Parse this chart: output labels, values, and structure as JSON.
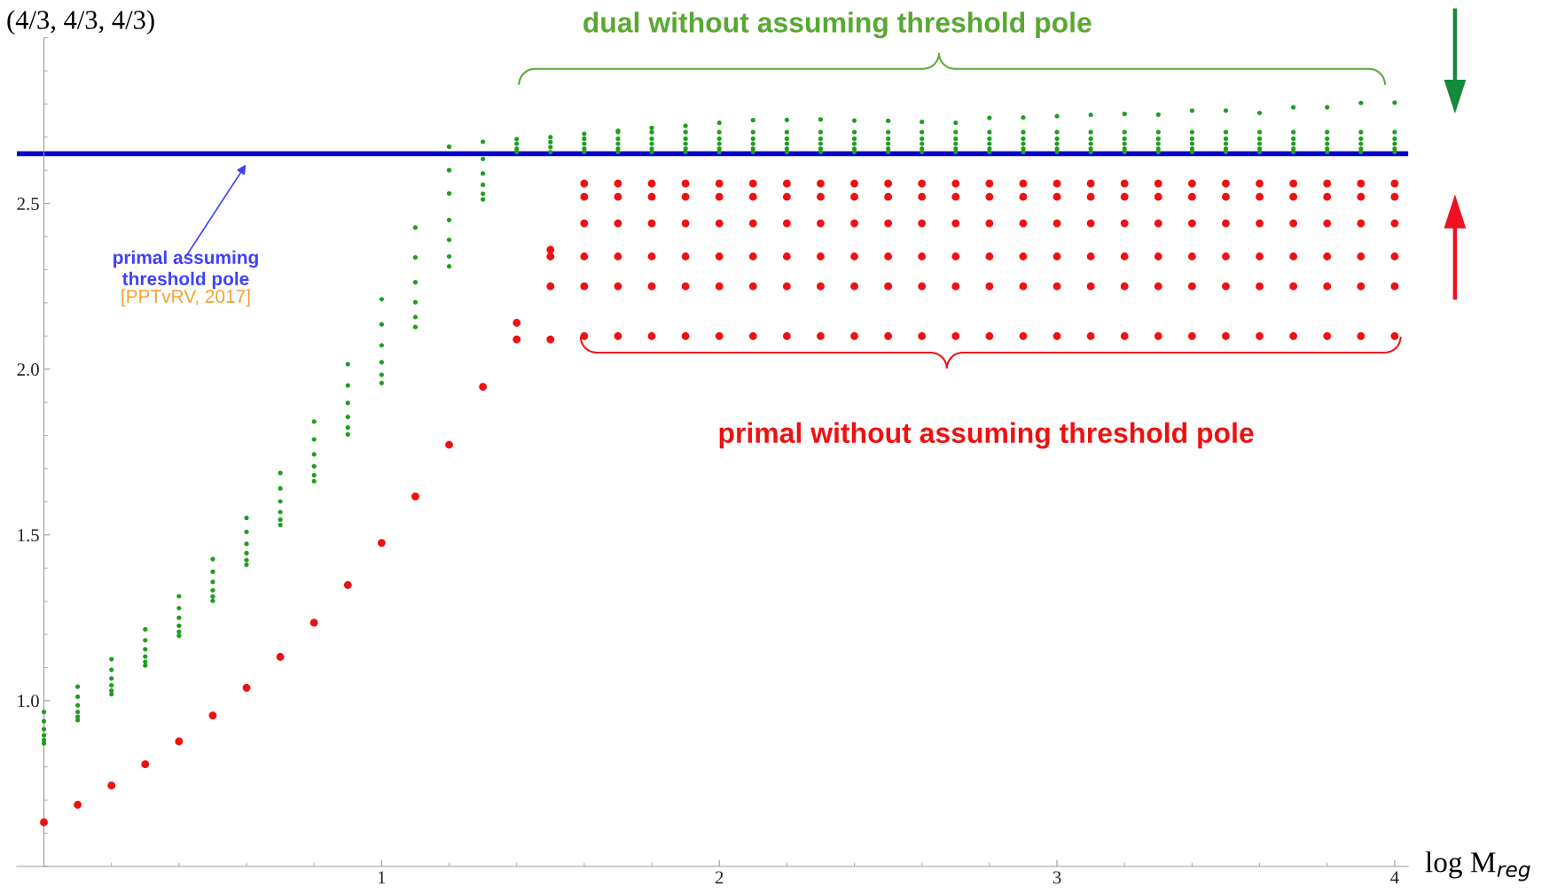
{
  "chart_data": {
    "type": "scatter",
    "xlabel": "log M$_{reg}$",
    "ylabel": "(4/3, 4/3, 4/3)",
    "xlim": [
      -0.08,
      4.04
    ],
    "ylim": [
      0.5,
      3.0
    ],
    "xticks": [
      1,
      2,
      3,
      4
    ],
    "yticks": [
      {
        "value": 1,
        "label": "1.0"
      },
      1.5,
      {
        "value": 2,
        "label": "2.0"
      },
      2.5
    ],
    "marker": "circle",
    "ref_lines": [
      {
        "axis": "y",
        "value": 2.65,
        "color": "#0000cc"
      }
    ],
    "annotations": [
      "primal assuming threshold pole",
      "[PPTvRV, 2017]"
    ],
    "series": [
      {
        "name": "dual without assuming threshold pole",
        "color": "#1e9e1e",
        "x": [
          0,
          0,
          0,
          0,
          0,
          0,
          0.1,
          0.1,
          0.1,
          0.1,
          0.1,
          0.1,
          0.2,
          0.2,
          0.2,
          0.2,
          0.2,
          0.2,
          0.3,
          0.3,
          0.3,
          0.3,
          0.3,
          0.3,
          0.4,
          0.4,
          0.4,
          0.4,
          0.4,
          0.4,
          0.5,
          0.5,
          0.5,
          0.5,
          0.5,
          0.5,
          0.6,
          0.6,
          0.6,
          0.6,
          0.6,
          0.6,
          0.7,
          0.7,
          0.7,
          0.7,
          0.7,
          0.7,
          0.8,
          0.8,
          0.8,
          0.8,
          0.8,
          0.8,
          0.9,
          0.9,
          0.9,
          0.9,
          0.9,
          0.9,
          1.0,
          1.0,
          1.0,
          1.0,
          1.0,
          1.0,
          1.1,
          1.1,
          1.1,
          1.1,
          1.1,
          1.1,
          1.2,
          1.2,
          1.2,
          1.2,
          1.2,
          1.2,
          1.2,
          1.3,
          1.3,
          1.3,
          1.3,
          1.3,
          1.3,
          1.4,
          1.4,
          1.4,
          1.4,
          1.5,
          1.5,
          1.5,
          1.5,
          1.6,
          1.6,
          1.6,
          1.6,
          1.6,
          1.7,
          1.7,
          1.7,
          1.7,
          1.7,
          1.7,
          1.8,
          1.8,
          1.8,
          1.8,
          1.8,
          1.8,
          1.9,
          1.9,
          1.9,
          1.9,
          1.9,
          1.9,
          2.0,
          2.0,
          2.0,
          2.0,
          2.0,
          2.0,
          2.1,
          2.1,
          2.1,
          2.1,
          2.1,
          2.1,
          2.2,
          2.2,
          2.2,
          2.2,
          2.2,
          2.2,
          2.3,
          2.3,
          2.3,
          2.3,
          2.3,
          2.3,
          2.4,
          2.4,
          2.4,
          2.4,
          2.4,
          2.4,
          2.5,
          2.5,
          2.5,
          2.5,
          2.5,
          2.5,
          2.6,
          2.6,
          2.6,
          2.6,
          2.6,
          2.6,
          2.7,
          2.7,
          2.7,
          2.7,
          2.7,
          2.7,
          2.8,
          2.8,
          2.8,
          2.8,
          2.8,
          2.8,
          2.9,
          2.9,
          2.9,
          2.9,
          2.9,
          2.9,
          3.0,
          3.0,
          3.0,
          3.0,
          3.0,
          3.0,
          3.1,
          3.1,
          3.1,
          3.1,
          3.1,
          3.1,
          3.2,
          3.2,
          3.2,
          3.2,
          3.2,
          3.2,
          3.3,
          3.3,
          3.3,
          3.3,
          3.3,
          3.3,
          3.4,
          3.4,
          3.4,
          3.4,
          3.4,
          3.4,
          3.5,
          3.5,
          3.5,
          3.5,
          3.5,
          3.5,
          3.6,
          3.6,
          3.6,
          3.6,
          3.6,
          3.6,
          3.7,
          3.7,
          3.7,
          3.7,
          3.7,
          3.7,
          3.8,
          3.8,
          3.8,
          3.8,
          3.8,
          3.8,
          3.9,
          3.9,
          3.9,
          3.9,
          3.9,
          3.9,
          4.0,
          4.0,
          4.0,
          4.0,
          4.0,
          4.0
        ],
        "values": [
          0.966,
          0.938,
          0.914,
          0.895,
          0.881,
          0.871,
          1.042,
          1.012,
          0.986,
          0.966,
          0.951,
          0.941,
          1.125,
          1.093,
          1.067,
          1.046,
          1.03,
          1.019,
          1.215,
          1.182,
          1.155,
          1.133,
          1.117,
          1.106,
          1.315,
          1.279,
          1.25,
          1.226,
          1.208,
          1.196,
          1.427,
          1.389,
          1.358,
          1.333,
          1.314,
          1.301,
          1.551,
          1.509,
          1.473,
          1.445,
          1.424,
          1.41,
          1.687,
          1.64,
          1.601,
          1.569,
          1.546,
          1.53,
          1.842,
          1.788,
          1.743,
          1.707,
          1.68,
          1.662,
          2.015,
          1.951,
          1.898,
          1.856,
          1.824,
          1.803,
          2.211,
          2.135,
          2.072,
          2.021,
          1.983,
          1.958,
          2.427,
          2.337,
          2.262,
          2.202,
          2.157,
          2.127,
          2.671,
          2.6,
          2.53,
          2.45,
          2.39,
          2.34,
          2.31,
          2.686,
          2.634,
          2.59,
          2.556,
          2.529,
          2.512,
          2.694,
          2.68,
          2.665,
          2.655,
          2.7,
          2.685,
          2.67,
          2.655,
          2.71,
          2.695,
          2.68,
          2.665,
          2.655,
          2.719,
          2.715,
          2.695,
          2.68,
          2.665,
          2.655,
          2.728,
          2.715,
          2.695,
          2.68,
          2.665,
          2.655,
          2.734,
          2.715,
          2.695,
          2.68,
          2.665,
          2.655,
          2.743,
          2.715,
          2.695,
          2.68,
          2.665,
          2.655,
          2.751,
          2.715,
          2.695,
          2.68,
          2.665,
          2.655,
          2.752,
          2.715,
          2.695,
          2.68,
          2.665,
          2.655,
          2.753,
          2.715,
          2.695,
          2.68,
          2.665,
          2.655,
          2.75,
          2.715,
          2.695,
          2.68,
          2.665,
          2.655,
          2.749,
          2.715,
          2.695,
          2.68,
          2.665,
          2.655,
          2.746,
          2.715,
          2.695,
          2.68,
          2.665,
          2.655,
          2.743,
          2.715,
          2.695,
          2.68,
          2.665,
          2.655,
          2.758,
          2.715,
          2.695,
          2.68,
          2.665,
          2.655,
          2.759,
          2.715,
          2.695,
          2.68,
          2.665,
          2.655,
          2.763,
          2.715,
          2.695,
          2.68,
          2.665,
          2.655,
          2.767,
          2.715,
          2.695,
          2.68,
          2.665,
          2.655,
          2.77,
          2.715,
          2.695,
          2.68,
          2.665,
          2.655,
          2.768,
          2.715,
          2.695,
          2.68,
          2.665,
          2.655,
          2.78,
          2.715,
          2.695,
          2.68,
          2.665,
          2.655,
          2.78,
          2.715,
          2.695,
          2.68,
          2.665,
          2.655,
          2.773,
          2.715,
          2.695,
          2.68,
          2.665,
          2.655,
          2.79,
          2.715,
          2.695,
          2.68,
          2.665,
          2.655,
          2.79,
          2.715,
          2.695,
          2.68,
          2.665,
          2.655,
          2.803,
          2.715,
          2.695,
          2.68,
          2.665,
          2.655,
          2.804,
          2.715,
          2.695,
          2.68,
          2.665,
          2.655
        ]
      },
      {
        "name": "primal without assuming threshold pole",
        "color": "#ee1111",
        "x": [
          0,
          0.1,
          0.2,
          0.3,
          0.4,
          0.5,
          0.6,
          0.7,
          0.8,
          0.9,
          1.0,
          1.1,
          1.2,
          1.3,
          1.4,
          1.4,
          1.5,
          1.5,
          1.5,
          1.5,
          1.6,
          1.6,
          1.6,
          1.6,
          1.6,
          1.6,
          1.7,
          1.7,
          1.7,
          1.7,
          1.7,
          1.7,
          1.8,
          1.8,
          1.8,
          1.8,
          1.8,
          1.8,
          1.9,
          1.9,
          1.9,
          1.9,
          1.9,
          1.9,
          2.0,
          2.0,
          2.0,
          2.0,
          2.0,
          2.0,
          2.1,
          2.1,
          2.1,
          2.1,
          2.1,
          2.1,
          2.2,
          2.2,
          2.2,
          2.2,
          2.2,
          2.2,
          2.3,
          2.3,
          2.3,
          2.3,
          2.3,
          2.3,
          2.4,
          2.4,
          2.4,
          2.4,
          2.4,
          2.4,
          2.5,
          2.5,
          2.5,
          2.5,
          2.5,
          2.5,
          2.6,
          2.6,
          2.6,
          2.6,
          2.6,
          2.6,
          2.7,
          2.7,
          2.7,
          2.7,
          2.7,
          2.7,
          2.8,
          2.8,
          2.8,
          2.8,
          2.8,
          2.8,
          2.9,
          2.9,
          2.9,
          2.9,
          2.9,
          2.9,
          3.0,
          3.0,
          3.0,
          3.0,
          3.0,
          3.0,
          3.1,
          3.1,
          3.1,
          3.1,
          3.1,
          3.1,
          3.2,
          3.2,
          3.2,
          3.2,
          3.2,
          3.2,
          3.3,
          3.3,
          3.3,
          3.3,
          3.3,
          3.3,
          3.4,
          3.4,
          3.4,
          3.4,
          3.4,
          3.4,
          3.5,
          3.5,
          3.5,
          3.5,
          3.5,
          3.5,
          3.6,
          3.6,
          3.6,
          3.6,
          3.6,
          3.6,
          3.7,
          3.7,
          3.7,
          3.7,
          3.7,
          3.7,
          3.8,
          3.8,
          3.8,
          3.8,
          3.8,
          3.8,
          3.9,
          3.9,
          3.9,
          3.9,
          3.9,
          3.9,
          4.0,
          4.0,
          4.0,
          4.0,
          4.0,
          4.0
        ],
        "values": [
          0.633,
          0.686,
          0.744,
          0.808,
          0.877,
          0.955,
          1.039,
          1.132,
          1.235,
          1.349,
          1.476,
          1.616,
          1.772,
          1.947,
          2.14,
          2.09,
          2.36,
          2.34,
          2.25,
          2.09,
          2.56,
          2.52,
          2.44,
          2.34,
          2.25,
          2.1,
          2.56,
          2.52,
          2.44,
          2.34,
          2.25,
          2.1,
          2.56,
          2.52,
          2.44,
          2.34,
          2.25,
          2.1,
          2.56,
          2.52,
          2.44,
          2.34,
          2.25,
          2.1,
          2.56,
          2.52,
          2.44,
          2.34,
          2.25,
          2.1,
          2.56,
          2.52,
          2.44,
          2.34,
          2.25,
          2.1,
          2.56,
          2.52,
          2.44,
          2.34,
          2.25,
          2.1,
          2.56,
          2.52,
          2.44,
          2.34,
          2.25,
          2.1,
          2.56,
          2.52,
          2.44,
          2.34,
          2.25,
          2.1,
          2.56,
          2.52,
          2.44,
          2.34,
          2.25,
          2.1,
          2.56,
          2.52,
          2.44,
          2.34,
          2.25,
          2.1,
          2.56,
          2.52,
          2.44,
          2.34,
          2.25,
          2.1,
          2.56,
          2.52,
          2.44,
          2.34,
          2.25,
          2.1,
          2.56,
          2.52,
          2.44,
          2.34,
          2.25,
          2.1,
          2.56,
          2.52,
          2.44,
          2.34,
          2.25,
          2.1,
          2.56,
          2.52,
          2.44,
          2.34,
          2.25,
          2.1,
          2.56,
          2.52,
          2.44,
          2.34,
          2.25,
          2.1,
          2.56,
          2.52,
          2.44,
          2.34,
          2.25,
          2.1,
          2.56,
          2.52,
          2.44,
          2.34,
          2.25,
          2.1,
          2.56,
          2.52,
          2.44,
          2.34,
          2.25,
          2.1,
          2.56,
          2.52,
          2.44,
          2.34,
          2.25,
          2.1,
          2.56,
          2.52,
          2.44,
          2.34,
          2.25,
          2.1,
          2.56,
          2.52,
          2.44,
          2.34,
          2.25,
          2.1,
          2.56,
          2.52,
          2.44,
          2.34,
          2.25,
          2.1,
          2.56,
          2.52,
          2.44,
          2.34,
          2.25,
          2.1
        ]
      }
    ]
  }
}
